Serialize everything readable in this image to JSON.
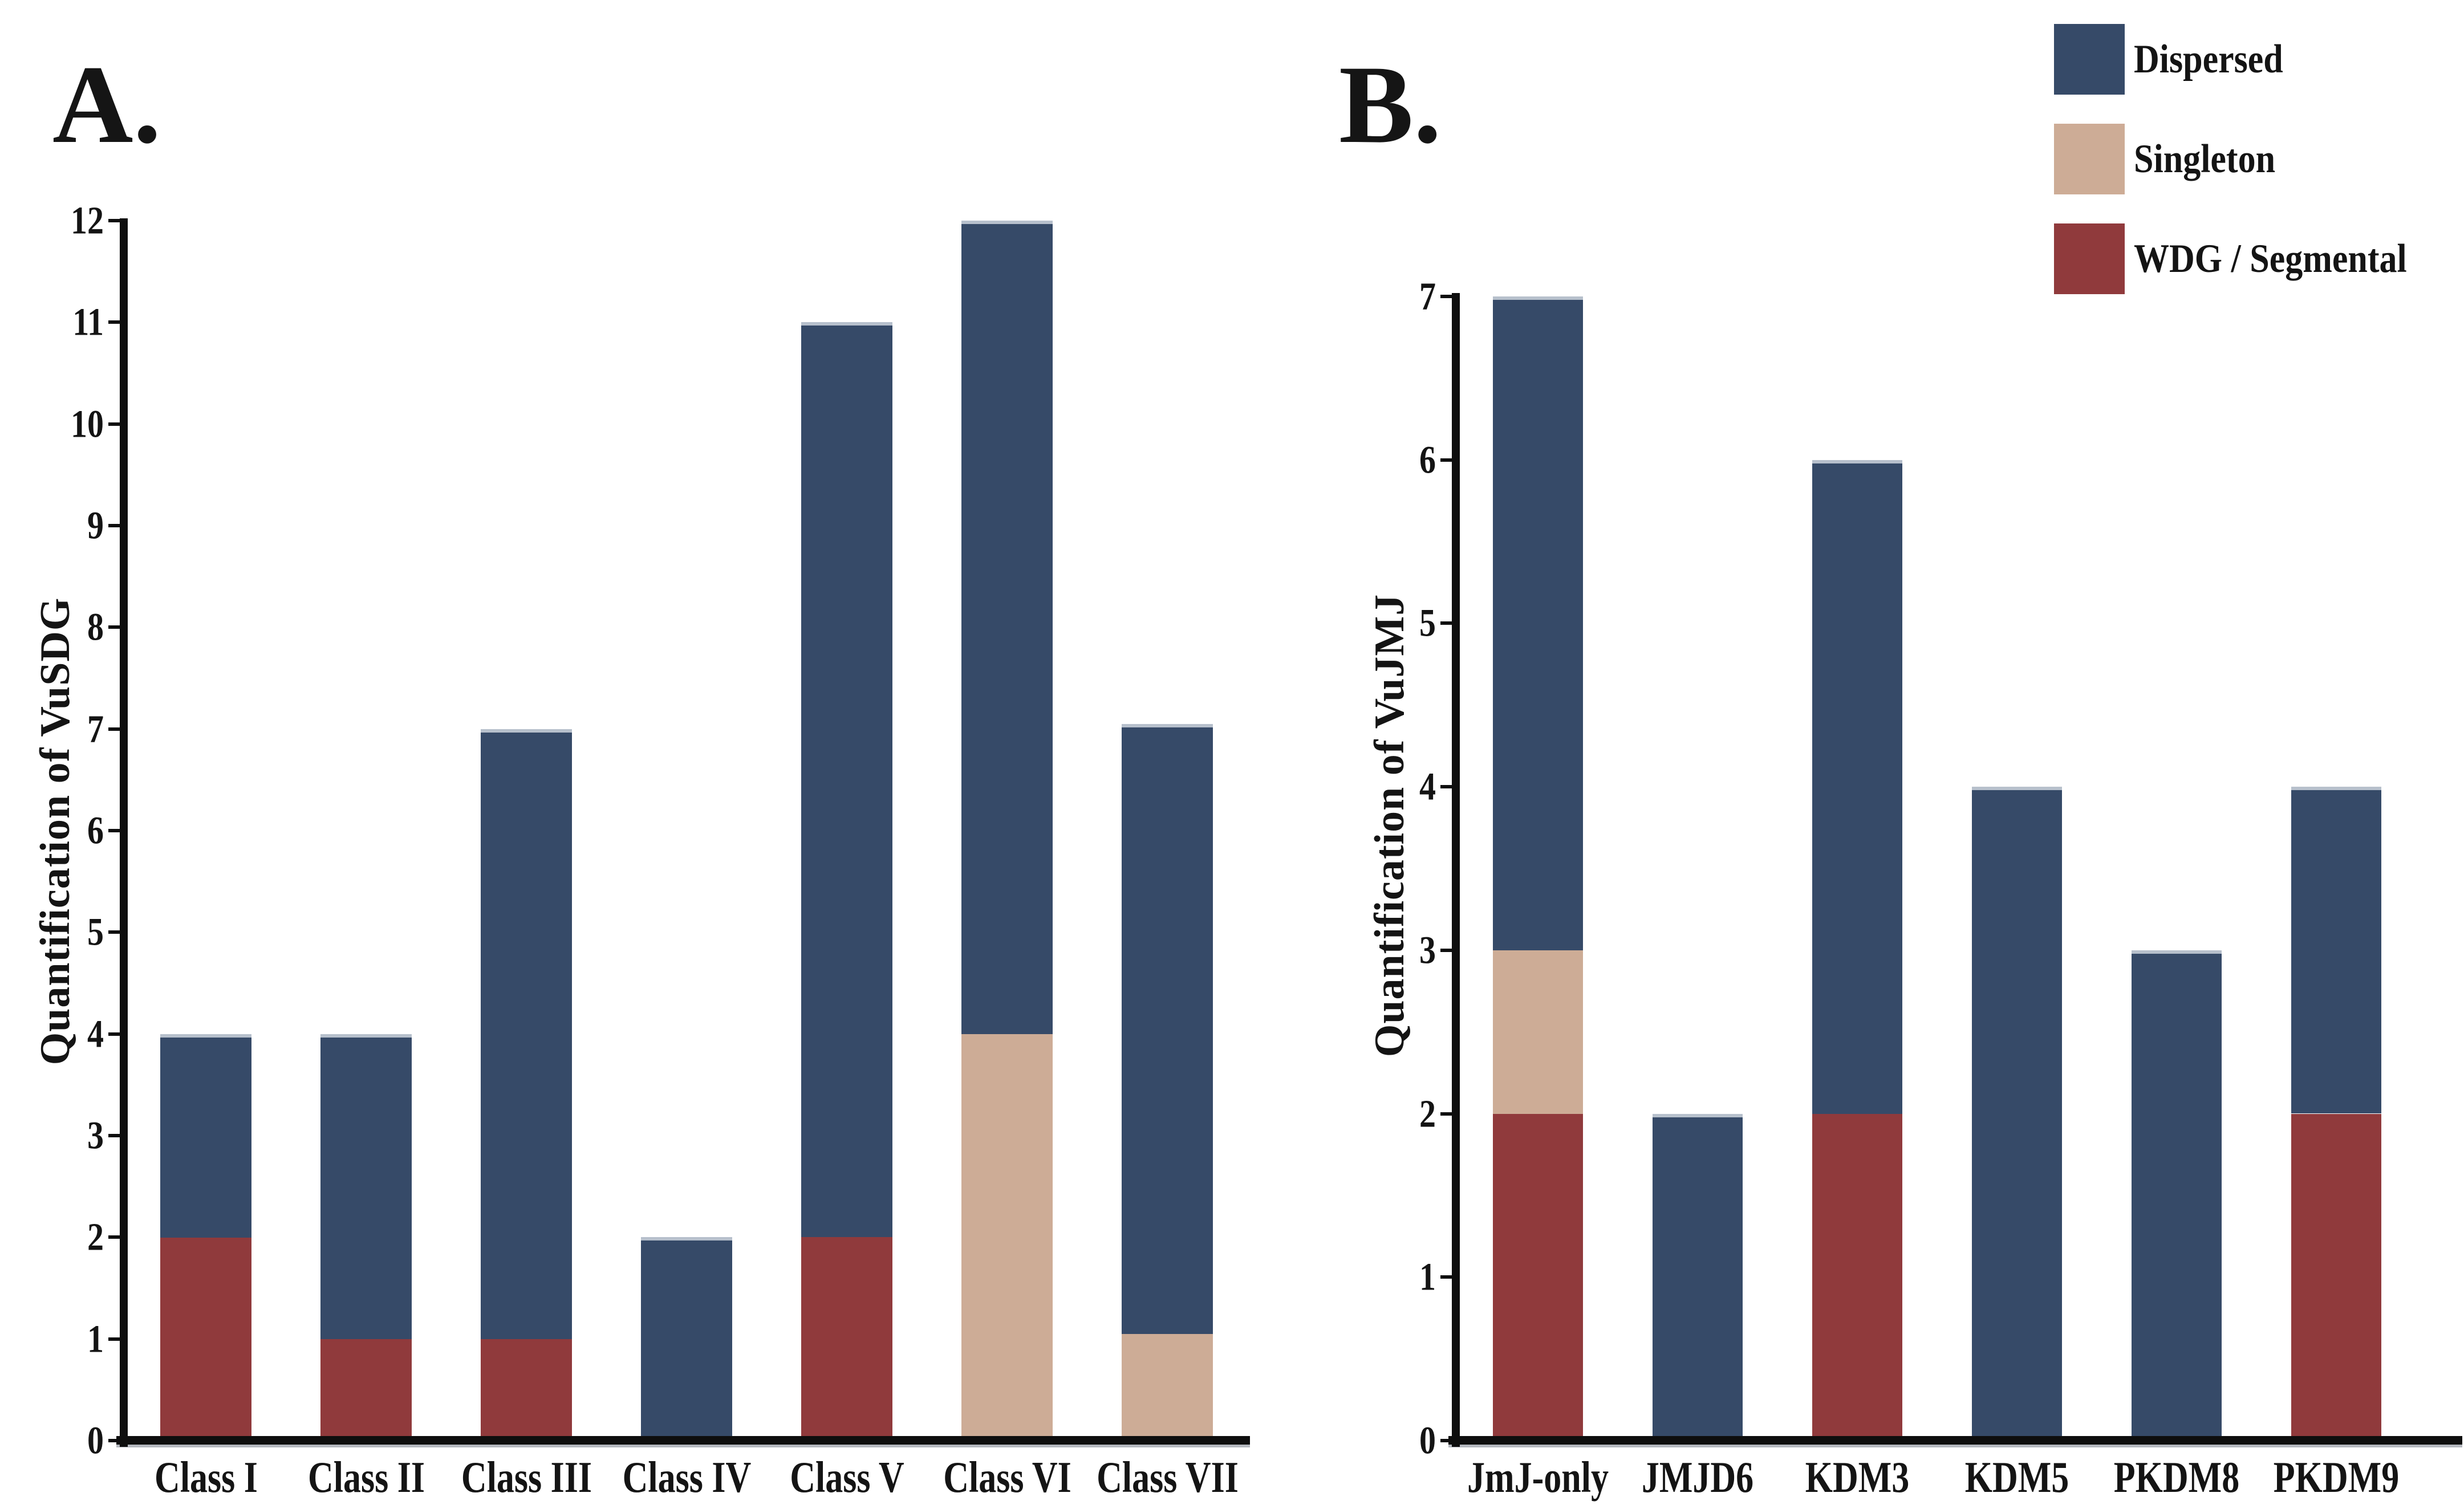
{
  "figure": {
    "panel_a_letter": "A.",
    "panel_b_letter": "B."
  },
  "legend": {
    "items": [
      {
        "label": "Dispersed",
        "color": "#364A68"
      },
      {
        "label": "Singleton",
        "color": "#CDAC96"
      },
      {
        "label": "WDG / Segmental",
        "color": "#903A3C"
      }
    ]
  },
  "colors": {
    "dispersed": "#364A68",
    "singleton": "#CDAC96",
    "wdg_segmental": "#903A3C",
    "axis": "#0E0E0E",
    "bar_top_cap": "#B7C0CC",
    "background": "#FFFFFF"
  },
  "chart_data": [
    {
      "id": "A",
      "type": "bar",
      "stacked": true,
      "title": "",
      "xlabel": "",
      "ylabel": "Quantification of VuSDG",
      "ylim": [
        0,
        12
      ],
      "ytick_step": 1,
      "grid": false,
      "legend_position": "top-right-shared",
      "yticks": [
        "0",
        "1",
        "2",
        "3",
        "4",
        "5",
        "6",
        "7",
        "8",
        "9",
        "10",
        "11",
        "12"
      ],
      "categories": [
        "Class I",
        "Class II",
        "Class III",
        "Class IV",
        "Class V",
        "Class VI",
        "Class VII"
      ],
      "series": [
        {
          "name": "WDG / Segmental",
          "color": "#903A3C",
          "values": [
            2,
            1,
            1,
            0,
            2,
            0,
            0
          ]
        },
        {
          "name": "Singleton",
          "color": "#CDAC96",
          "values": [
            0,
            0,
            0,
            0,
            0,
            4,
            1.05
          ]
        },
        {
          "name": "Dispersed",
          "color": "#364A68",
          "values": [
            2,
            3,
            6,
            2,
            9,
            8,
            6
          ]
        }
      ]
    },
    {
      "id": "B",
      "type": "bar",
      "stacked": true,
      "title": "",
      "xlabel": "",
      "ylabel": "Quantification of VuJMJ",
      "ylim": [
        0,
        7
      ],
      "ytick_step": 1,
      "grid": false,
      "legend_position": "top-right-shared",
      "yticks": [
        "0",
        "1",
        "2",
        "3",
        "4",
        "5",
        "6",
        "7"
      ],
      "categories": [
        "JmJ-only",
        "JMJD6",
        "KDM3",
        "KDM5",
        "PKDM8",
        "PKDM9"
      ],
      "series": [
        {
          "name": "WDG / Segmental",
          "color": "#903A3C",
          "values": [
            2,
            0,
            2,
            0,
            0,
            2
          ]
        },
        {
          "name": "Singleton",
          "color": "#CDAC96",
          "values": [
            1,
            0,
            0,
            0,
            0,
            0
          ]
        },
        {
          "name": "Dispersed",
          "color": "#364A68",
          "values": [
            4,
            2,
            4,
            4,
            3,
            2
          ]
        }
      ]
    }
  ]
}
